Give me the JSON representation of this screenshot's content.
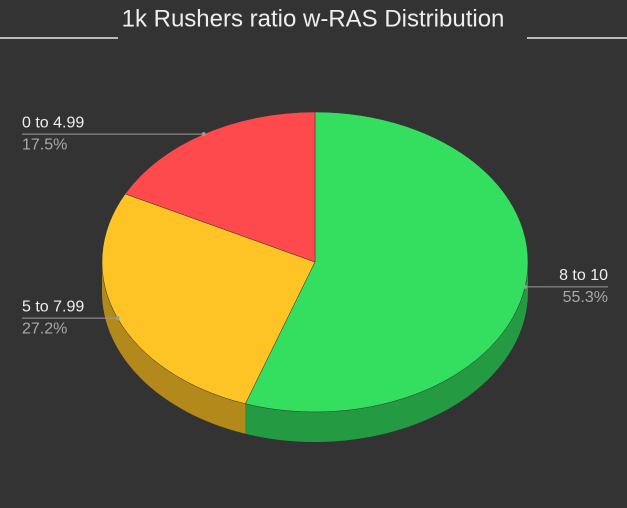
{
  "chart_data": {
    "type": "pie3d",
    "title": "1k Rushers ratio w-RAS Distribution",
    "categories": [
      "8 to 10",
      "5 to 7.99",
      "0 to 4.99"
    ],
    "values": [
      55.3,
      27.2,
      17.5
    ],
    "value_labels": [
      "55.3%",
      "27.2%",
      "17.5%"
    ],
    "colors": [
      "#34de5f",
      "#fec425",
      "#fe4a4d"
    ]
  }
}
